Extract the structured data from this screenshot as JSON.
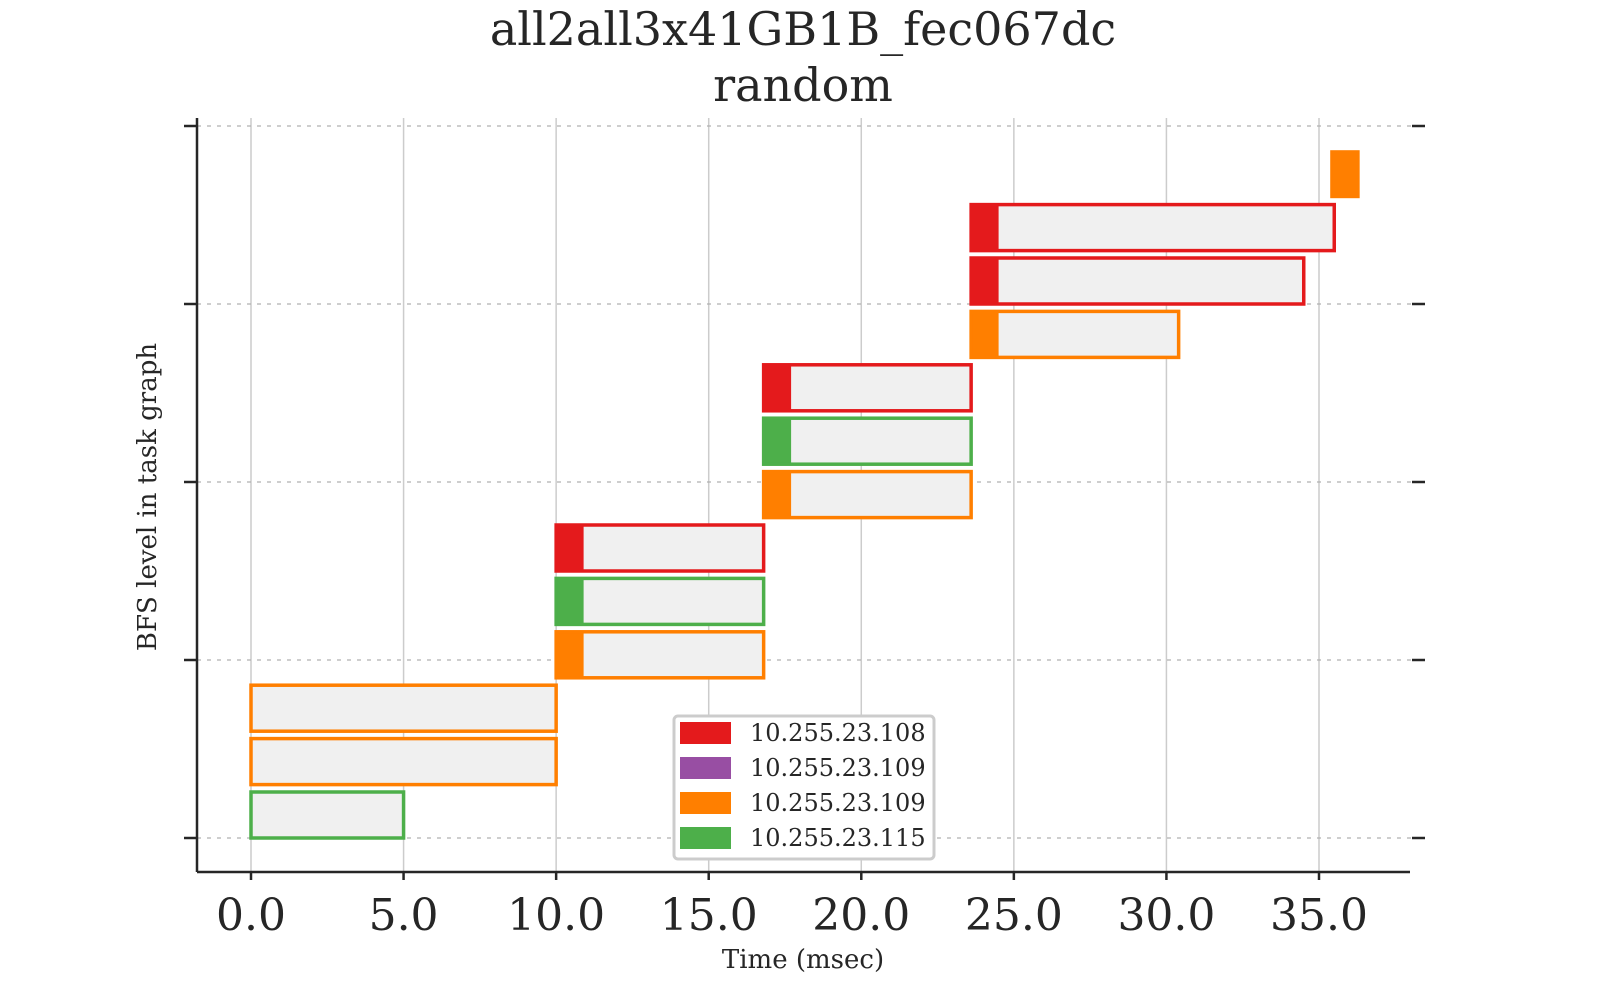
{
  "chart_data": {
    "type": "gantt",
    "title": "all2all3x41GB1B_fec067dc",
    "subtitle": "random",
    "xlabel": "Time (msec)",
    "ylabel": "BFS level in task graph",
    "xlim": [
      -1.75,
      38.0
    ],
    "xticks": [
      "0.0",
      "5.0",
      "10.0",
      "15.0",
      "20.0",
      "25.0",
      "30.0",
      "35.0"
    ],
    "xtick_values": [
      0,
      5,
      10,
      15,
      20,
      25,
      30,
      35
    ],
    "ylim": [
      -0.2,
      4.05
    ],
    "ytick_values": [
      0,
      1,
      2,
      3,
      4
    ],
    "grid": "x solid, y dashed",
    "colors": {
      "red": "#e41a1c",
      "purple": "#984ea3",
      "orange": "#ff7f00",
      "green": "#4daf4a",
      "fill": "#f0f0f0"
    },
    "legend": {
      "placement": "lower center",
      "entries": [
        {
          "label": "10.255.23.108",
          "color": "#e41a1c"
        },
        {
          "label": "10.255.23.109",
          "color": "#984ea3"
        },
        {
          "label": "10.255.23.109",
          "color": "#ff7f00"
        },
        {
          "label": "10.255.23.115",
          "color": "#4daf4a"
        }
      ]
    },
    "tasks": [
      {
        "y": 0.0,
        "start": 0.0,
        "end": 5.0,
        "head": 0.0,
        "color": "#4daf4a"
      },
      {
        "y": 0.3,
        "start": 0.0,
        "end": 10.0,
        "head": 0.0,
        "color": "#ff7f00"
      },
      {
        "y": 0.6,
        "start": 0.0,
        "end": 10.0,
        "head": 0.0,
        "color": "#ff7f00"
      },
      {
        "y": 0.9,
        "start": 10.0,
        "end": 16.8,
        "head": 0.9,
        "color": "#ff7f00"
      },
      {
        "y": 1.2,
        "start": 10.0,
        "end": 16.8,
        "head": 0.9,
        "color": "#4daf4a"
      },
      {
        "y": 1.5,
        "start": 10.0,
        "end": 16.8,
        "head": 0.9,
        "color": "#e41a1c"
      },
      {
        "y": 1.8,
        "start": 16.8,
        "end": 23.6,
        "head": 0.9,
        "color": "#ff7f00"
      },
      {
        "y": 2.1,
        "start": 16.8,
        "end": 23.6,
        "head": 0.9,
        "color": "#4daf4a"
      },
      {
        "y": 2.4,
        "start": 16.8,
        "end": 23.6,
        "head": 0.9,
        "color": "#e41a1c"
      },
      {
        "y": 2.7,
        "start": 23.6,
        "end": 30.4,
        "head": 0.9,
        "color": "#ff7f00"
      },
      {
        "y": 3.0,
        "start": 23.6,
        "end": 34.5,
        "head": 0.9,
        "color": "#e41a1c"
      },
      {
        "y": 3.3,
        "start": 23.6,
        "end": 35.5,
        "head": 0.9,
        "color": "#e41a1c"
      },
      {
        "y": 3.6,
        "start": 35.4,
        "end": 36.3,
        "head": 0.9,
        "color": "#ff7f00",
        "solid": true
      }
    ]
  }
}
